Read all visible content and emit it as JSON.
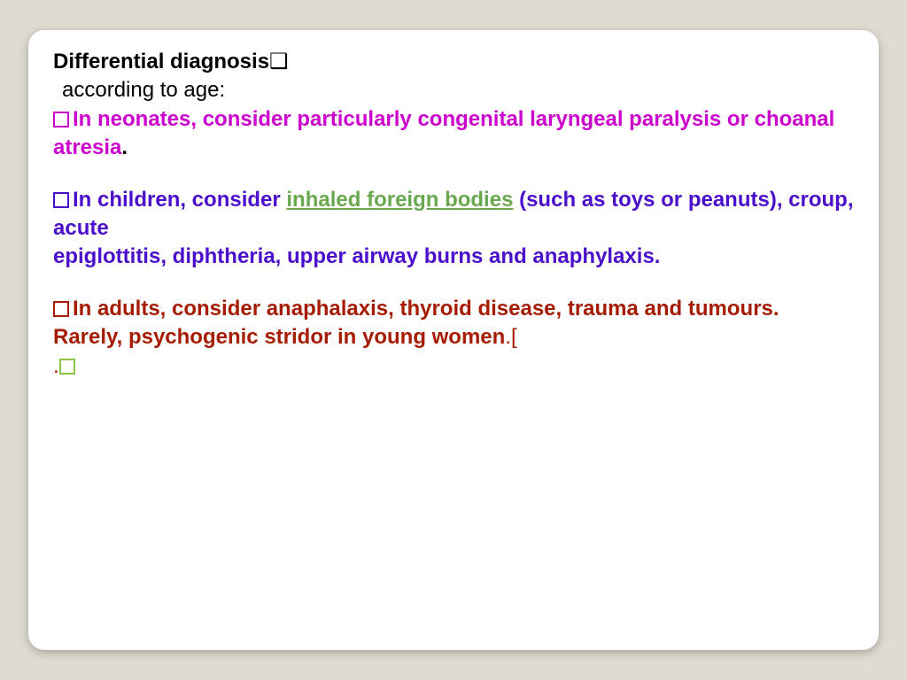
{
  "colors": {
    "page_bg": "#dedbd0",
    "slide_bg": "#ffffff",
    "title": "#000000",
    "neonates": "#cc00cc",
    "children": "#4b0fcb",
    "link": "#6aa84f",
    "adults": "#a61c00",
    "green_bullet": "#8bc34a"
  },
  "font": {
    "family": "Verdana",
    "size_pt": 18,
    "weight_body": "bold"
  },
  "layout": {
    "slide_width": 960,
    "slide_height": 700,
    "border_radius": 18
  },
  "title": {
    "text": "Differential diagnosis",
    "marker": "❑",
    "subtitle": "according to age:"
  },
  "neonates": {
    "text": "In neonates, consider particularly congenital laryngeal paralysis or choanal atresia",
    "period": "."
  },
  "children": {
    "lead": "In children, consider ",
    "link": "inhaled foreign bodies",
    "tail1": " (such as toys or peanuts), croup, acute",
    "tail2": "epiglottitis, diphtheria, upper airway burns and anaphylaxis."
  },
  "adults": {
    "line1": "In adults, consider anaphalaxis, thyroid disease, trauma and tumours.",
    "line2": "Rarely, psychogenic stridor in young women",
    "period": ".",
    "bracket": "["
  },
  "trailing": {
    "dot": " ."
  }
}
